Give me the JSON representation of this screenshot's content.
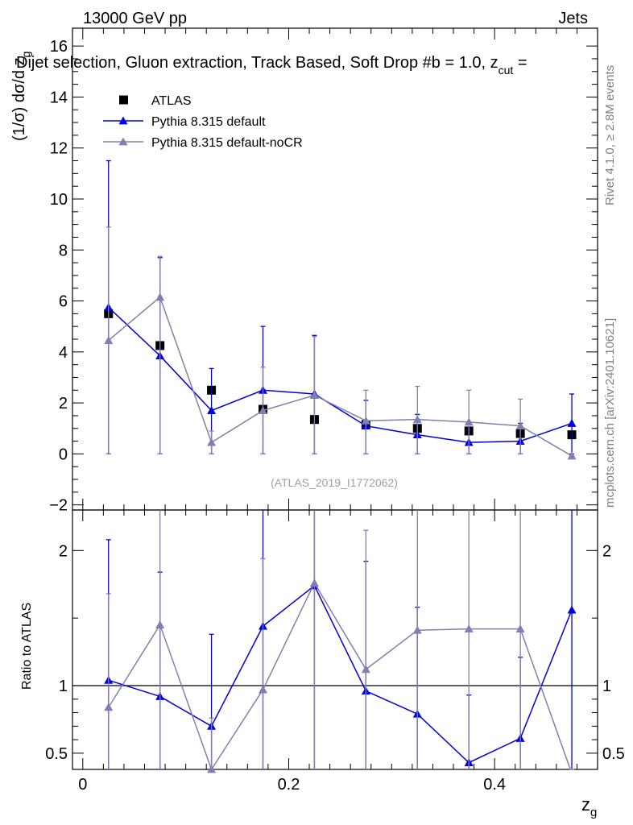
{
  "header": {
    "left_label": "13000 GeV pp",
    "right_label": "Jets",
    "title": "Dijet selection, Gluon extraction, Track Based, Soft Drop #b = 1.0, z",
    "title_subscript": "cut",
    "title_suffix": " ="
  },
  "side_labels": {
    "rivet": "Rivet 4.1.0, ≥ 2.8M events",
    "mcplots": "mcplots.cern.ch [arXiv:2401.10621]"
  },
  "chart_data": [
    {
      "type": "scatter",
      "panel": "main",
      "ylabel": "(1/σ) dσ/d z",
      "ylabel_subscript": "g",
      "xlabel": "z",
      "xlabel_subscript": "g",
      "xlim": [
        -0.01,
        0.5
      ],
      "ylim": [
        -2.2,
        16.7
      ],
      "yticks": [
        -2,
        0,
        2,
        4,
        6,
        8,
        10,
        12,
        14,
        16
      ],
      "ytick_labels": [
        "−2",
        "0",
        "2",
        "4",
        "6",
        "8",
        "10",
        "12",
        "14",
        "16"
      ],
      "watermark": "(ATLAS_2019_I1772062)",
      "x": [
        0.025,
        0.075,
        0.125,
        0.175,
        0.225,
        0.275,
        0.325,
        0.375,
        0.425,
        0.475
      ],
      "legend": [
        {
          "label": "ATLAS",
          "marker": "square",
          "color": "#000000"
        },
        {
          "label": "Pythia 8.315 default",
          "marker": "triangle",
          "color": "#0000dd"
        },
        {
          "label": "Pythia 8.315 default-noCR",
          "marker": "triangle",
          "color": "#8080b0"
        }
      ],
      "series": [
        {
          "name": "ATLAS",
          "color": "#000000",
          "values": [
            5.5,
            4.25,
            2.5,
            1.75,
            1.35,
            1.15,
            1.0,
            0.9,
            0.8,
            0.75
          ]
        },
        {
          "name": "Pythia 8.315 default",
          "color": "#0000dd",
          "values": [
            5.75,
            3.85,
            1.7,
            2.5,
            2.35,
            1.1,
            0.75,
            0.45,
            0.5,
            1.2
          ],
          "err_low": [
            5.75,
            3.85,
            1.7,
            2.5,
            2.35,
            1.1,
            0.75,
            0.45,
            0.5,
            1.2
          ],
          "err_high": [
            5.75,
            3.85,
            1.65,
            2.5,
            2.3,
            1.0,
            0.8,
            0.5,
            0.7,
            1.15
          ]
        },
        {
          "name": "Pythia 8.315 default-noCR",
          "color": "#8080b0",
          "values": [
            4.45,
            6.15,
            0.45,
            1.7,
            2.3,
            1.3,
            1.35,
            1.25,
            1.1,
            -0.08
          ],
          "err_low": [
            4.45,
            6.15,
            0.45,
            1.7,
            2.3,
            1.3,
            1.35,
            1.25,
            1.1,
            0.0
          ],
          "err_high": [
            4.45,
            1.6,
            0.45,
            1.7,
            2.3,
            1.2,
            1.3,
            1.25,
            1.05,
            0.0
          ]
        }
      ]
    },
    {
      "type": "line",
      "panel": "ratio",
      "ylabel": "Ratio to ATLAS",
      "xlabel": "z",
      "xlabel_subscript": "g",
      "xlim": [
        -0.01,
        0.5
      ],
      "ylim": [
        0.38,
        2.3
      ],
      "yticks": [
        0.5,
        1,
        2
      ],
      "ytick_labels": [
        "0.5",
        "1",
        "2"
      ],
      "xticks": [
        0,
        0.2,
        0.4
      ],
      "xtick_labels": [
        "0",
        "0.2",
        "0.4"
      ],
      "reference": 1.0,
      "x": [
        0.025,
        0.075,
        0.125,
        0.175,
        0.225,
        0.275,
        0.325,
        0.375,
        0.425,
        0.475
      ],
      "series": [
        {
          "name": "Pythia 8.315 default",
          "color": "#0000dd",
          "values": [
            1.04,
            0.92,
            0.7,
            1.44,
            1.74,
            0.96,
            0.79,
            0.43,
            0.61,
            1.56
          ],
          "err_low": [
            1.04,
            0.92,
            0.7,
            1.44,
            1.74,
            0.96,
            0.79,
            0.43,
            0.61,
            1.56
          ],
          "err_high": [
            1.04,
            0.92,
            0.68,
            1.44,
            1.74,
            0.96,
            0.79,
            0.5,
            0.6,
            1.56
          ]
        },
        {
          "name": "Pythia 8.315 default-noCR",
          "color": "#8080b0",
          "values": [
            0.84,
            1.45,
            0.38,
            0.97,
            1.76,
            1.12,
            1.41,
            1.42,
            1.42,
            0.35
          ],
          "err_low": [
            0.84,
            1.45,
            0.38,
            0.97,
            1.76,
            1.12,
            1.41,
            1.42,
            1.42,
            0.0
          ],
          "err_high": [
            0.84,
            1.45,
            0.38,
            0.97,
            1.76,
            1.03,
            1.41,
            1.42,
            1.42,
            0.0
          ]
        }
      ]
    }
  ]
}
